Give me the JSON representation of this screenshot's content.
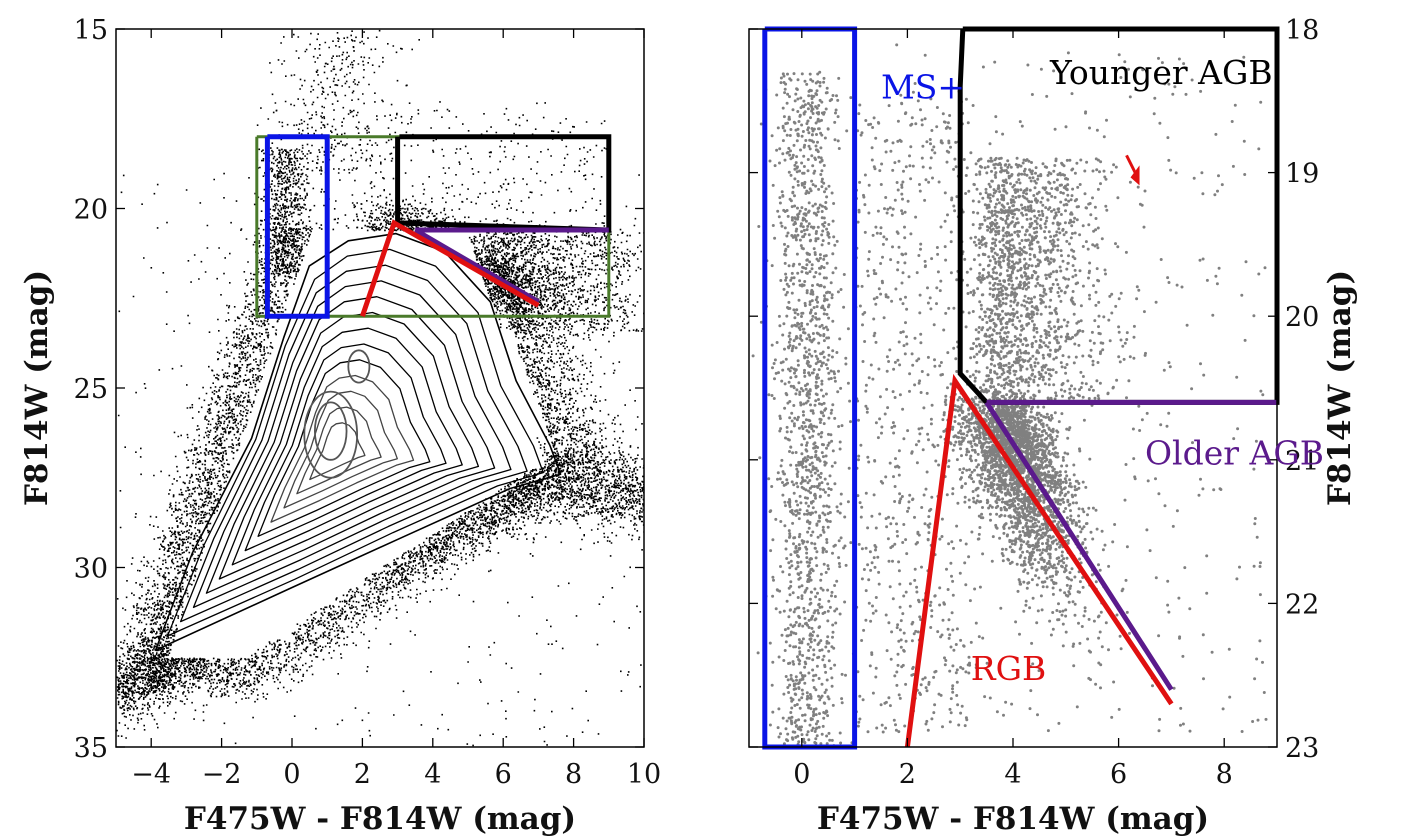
{
  "chart_data": [
    {
      "type": "scatter",
      "panel": "left",
      "title": "",
      "xlabel": "F475W - F814W (mag)",
      "ylabel": "F814W (mag)",
      "xlim": [
        -5,
        10
      ],
      "ylim": [
        35,
        15
      ],
      "xticks": [
        -4,
        -2,
        0,
        2,
        4,
        6,
        8,
        10
      ],
      "xtick_labels": [
        "−4",
        "−2",
        "0",
        "2",
        "4",
        "6",
        "8",
        "10"
      ],
      "yticks": [
        15,
        20,
        25,
        30,
        35
      ],
      "ytick_labels": [
        "15",
        "20",
        "25",
        "30",
        "35"
      ],
      "density_contours": true,
      "regions": [
        {
          "name": "selection-box",
          "color": "#4a7a2a",
          "x": [
            -1,
            -1,
            9,
            9,
            -1
          ],
          "y": [
            18,
            23,
            23,
            18,
            18
          ]
        },
        {
          "name": "ms-box",
          "color": "#0a14e6",
          "x": [
            -0.7,
            -0.7,
            1,
            1,
            -0.7
          ],
          "y": [
            18,
            23,
            23,
            18,
            18
          ]
        },
        {
          "name": "younger-agb-box",
          "color": "#000000",
          "x": [
            3,
            3,
            9,
            9,
            3.05
          ],
          "y": [
            18,
            20.4,
            20.6,
            18,
            18
          ]
        },
        {
          "name": "older-agb-line",
          "color": "#5b1a8c",
          "x": [
            3.5,
            9,
            3.5,
            7
          ],
          "y": [
            20.6,
            20.6,
            20.6,
            22.6
          ]
        },
        {
          "name": "rgb-line",
          "color": "#e01010",
          "x": [
            2,
            2.9,
            7
          ],
          "y": [
            23,
            20.4,
            22.7
          ]
        }
      ]
    },
    {
      "type": "scatter",
      "panel": "right",
      "title": "",
      "xlabel": "F475W - F814W (mag)",
      "ylabel": "F814W (mag)",
      "ylabel_side": "right",
      "xlim": [
        -1,
        9
      ],
      "ylim": [
        23,
        18
      ],
      "xticks": [
        0,
        2,
        4,
        6,
        8
      ],
      "xtick_labels": [
        "0",
        "2",
        "4",
        "6",
        "8"
      ],
      "yticks": [
        18,
        19,
        20,
        21,
        22,
        23
      ],
      "ytick_labels": [
        "18",
        "19",
        "20",
        "21",
        "22",
        "23"
      ],
      "regions": [
        {
          "name": "ms-box",
          "label": "MS+",
          "color": "#0a14e6",
          "x": [
            -0.7,
            -0.7,
            1,
            1,
            -0.7
          ],
          "y": [
            18,
            23,
            23,
            18,
            18
          ]
        },
        {
          "name": "younger-agb-box",
          "label": "Younger AGB",
          "color": "#000000",
          "x": [
            3.05,
            3,
            3,
            3.5,
            9,
            9,
            3.05
          ],
          "y": [
            18,
            18.4,
            20.4,
            20.6,
            20.6,
            18,
            18
          ]
        },
        {
          "name": "older-agb-line",
          "label": "Older AGB",
          "color": "#5b1a8c",
          "x": [
            3.5,
            9,
            3.5,
            7
          ],
          "y": [
            20.6,
            20.6,
            20.6,
            22.6
          ]
        },
        {
          "name": "rgb-line",
          "label": "RGB",
          "color": "#e01010",
          "x": [
            2,
            2.9,
            7
          ],
          "y": [
            23,
            20.45,
            22.7
          ]
        }
      ],
      "annotations": [
        {
          "text": "MS+",
          "x": 1.5,
          "y": 18.4,
          "color": "#0a14e6"
        },
        {
          "text": "Younger AGB",
          "x": 4.7,
          "y": 18.3,
          "color": "#000000"
        },
        {
          "text": "Older AGB",
          "x": 6.5,
          "y": 20.95,
          "color": "#5b1a8c"
        },
        {
          "text": "RGB",
          "x": 3.2,
          "y": 22.45,
          "color": "#e01010"
        }
      ]
    }
  ]
}
